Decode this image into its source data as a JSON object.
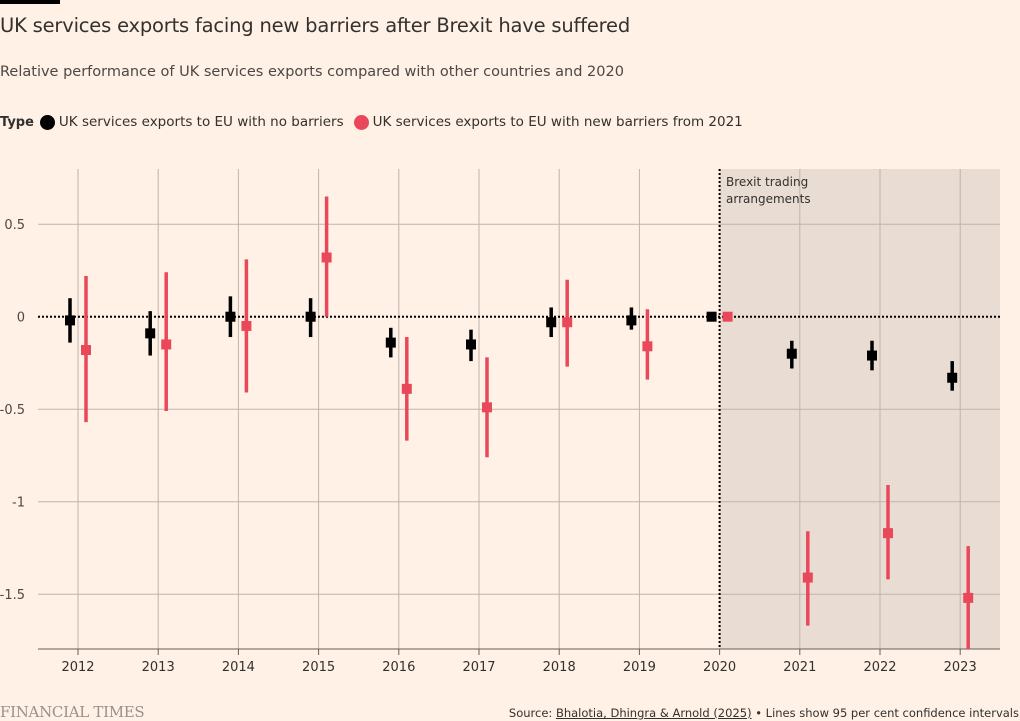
{
  "header": {
    "title": "UK services exports facing new barriers after Brexit have suffered",
    "subtitle": "Relative performance of UK services exports compared with other countries and 2020"
  },
  "legend": {
    "label": "Type",
    "items": [
      {
        "name": "UK services exports to EU with no barriers",
        "color": "#000000"
      },
      {
        "name": "UK services exports to EU with new barriers from 2021",
        "color": "#e9485a"
      }
    ]
  },
  "annotation": {
    "line1": "Brexit trading",
    "line2": "arrangements"
  },
  "footer": {
    "logo": "FINANCIAL TIMES",
    "source_prefix": "Source: ",
    "source_link": "Bhalotia, Dhingra & Arnold (2025)",
    "source_suffix": " • Lines show 95 per cent confidence intervals"
  },
  "chart_data": {
    "type": "scatter",
    "title": "UK services exports facing new barriers after Brexit have suffered",
    "subtitle": "Relative performance of UK services exports compared with other countries and 2020",
    "xlabel": "",
    "ylabel": "",
    "categories": [
      "2012",
      "2013",
      "2014",
      "2015",
      "2016",
      "2017",
      "2018",
      "2019",
      "2020",
      "2021",
      "2022",
      "2023"
    ],
    "ylim": [
      -1.8,
      0.78
    ],
    "yticks": [
      0.5,
      0,
      -0.5,
      -1,
      -1.5
    ],
    "ytick_labels": [
      "0.5",
      "0",
      "-0.5",
      "-1",
      "-1.5"
    ],
    "grid": true,
    "reference_line": {
      "y": 0,
      "style": "dotted"
    },
    "shaded_region": {
      "from": "2020",
      "to": "end",
      "label": "Brexit trading arrangements"
    },
    "legend_position": "top-left",
    "series": [
      {
        "name": "UK services exports to EU with no barriers",
        "color": "#000000",
        "values": [
          -0.02,
          -0.09,
          0.0,
          0.0,
          -0.14,
          -0.15,
          -0.03,
          -0.02,
          0.0,
          -0.2,
          -0.21,
          -0.33
        ],
        "lower": [
          -0.14,
          -0.21,
          -0.11,
          -0.11,
          -0.22,
          -0.24,
          -0.11,
          -0.07,
          0.0,
          -0.28,
          -0.29,
          -0.4
        ],
        "upper": [
          0.1,
          0.03,
          0.11,
          0.1,
          -0.06,
          -0.07,
          0.05,
          0.05,
          0.0,
          -0.13,
          -0.13,
          -0.24
        ]
      },
      {
        "name": "UK services exports to EU with new barriers from 2021",
        "color": "#e9485a",
        "values": [
          -0.18,
          -0.15,
          -0.05,
          0.32,
          -0.39,
          -0.49,
          -0.03,
          -0.16,
          0.0,
          -1.41,
          -1.17,
          -1.52
        ],
        "lower": [
          -0.57,
          -0.51,
          -0.41,
          0.0,
          -0.67,
          -0.76,
          -0.27,
          -0.34,
          0.0,
          -1.67,
          -1.42,
          -1.85
        ],
        "upper": [
          0.22,
          0.24,
          0.31,
          0.65,
          -0.11,
          -0.22,
          0.2,
          0.04,
          0.0,
          -1.16,
          -0.91,
          -1.24
        ]
      }
    ]
  }
}
